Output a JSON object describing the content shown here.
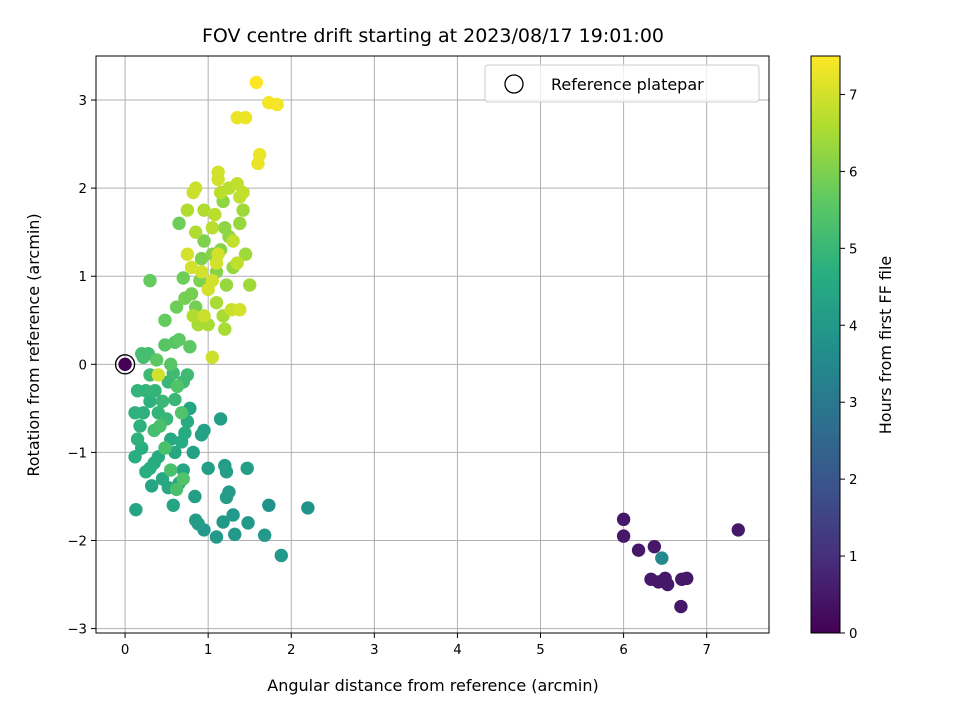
{
  "chart_data": {
    "type": "scatter",
    "title": "FOV centre drift starting at 2023/08/17 19:01:00",
    "xlabel": "Angular distance from reference (arcmin)",
    "ylabel": "Rotation from reference (arcmin)",
    "xlim": [
      -0.35,
      7.75
    ],
    "ylim": [
      -3.05,
      3.5
    ],
    "xticks": [
      0,
      1,
      2,
      3,
      4,
      5,
      6,
      7
    ],
    "yticks": [
      -3,
      -2,
      -1,
      0,
      1,
      2,
      3
    ],
    "grid": true,
    "legend": {
      "placement": "top-right",
      "entries": [
        "Reference platepar"
      ]
    },
    "reference_point": {
      "x": 0,
      "y": 0,
      "name": "Reference platepar"
    },
    "colorbar": {
      "label": "Hours from first FF file",
      "range": [
        0,
        7.5
      ],
      "ticks": [
        0,
        1,
        2,
        3,
        4,
        5,
        6,
        7
      ],
      "colormap": "viridis"
    },
    "points": [
      {
        "x": 0.0,
        "y": 0.0,
        "c": 0.0
      },
      {
        "x": 6.0,
        "y": -1.76,
        "c": 0.5
      },
      {
        "x": 6.0,
        "y": -1.95,
        "c": 0.5
      },
      {
        "x": 6.18,
        "y": -2.11,
        "c": 0.5
      },
      {
        "x": 6.37,
        "y": -2.07,
        "c": 0.5
      },
      {
        "x": 6.33,
        "y": -2.44,
        "c": 0.5
      },
      {
        "x": 6.42,
        "y": -2.47,
        "c": 0.5
      },
      {
        "x": 6.5,
        "y": -2.43,
        "c": 0.5
      },
      {
        "x": 6.53,
        "y": -2.5,
        "c": 0.5
      },
      {
        "x": 6.7,
        "y": -2.44,
        "c": 0.5
      },
      {
        "x": 6.76,
        "y": -2.43,
        "c": 0.5
      },
      {
        "x": 6.69,
        "y": -2.75,
        "c": 0.5
      },
      {
        "x": 7.38,
        "y": -1.88,
        "c": 0.5
      },
      {
        "x": 6.46,
        "y": -2.2,
        "c": 3.5
      },
      {
        "x": 2.2,
        "y": -1.63,
        "c": 3.8
      },
      {
        "x": 1.73,
        "y": -1.6,
        "c": 3.8
      },
      {
        "x": 1.88,
        "y": -2.17,
        "c": 4.0
      },
      {
        "x": 1.68,
        "y": -1.94,
        "c": 4.0
      },
      {
        "x": 1.48,
        "y": -1.8,
        "c": 4.0
      },
      {
        "x": 1.32,
        "y": -1.93,
        "c": 4.0
      },
      {
        "x": 1.3,
        "y": -1.71,
        "c": 4.0
      },
      {
        "x": 1.18,
        "y": -1.79,
        "c": 4.0
      },
      {
        "x": 1.1,
        "y": -1.96,
        "c": 4.0
      },
      {
        "x": 0.95,
        "y": -1.88,
        "c": 4.0
      },
      {
        "x": 0.88,
        "y": -1.81,
        "c": 4.1
      },
      {
        "x": 0.85,
        "y": -1.77,
        "c": 4.1
      },
      {
        "x": 1.22,
        "y": -1.51,
        "c": 4.1
      },
      {
        "x": 1.25,
        "y": -1.45,
        "c": 4.1
      },
      {
        "x": 1.2,
        "y": -1.15,
        "c": 4.1
      },
      {
        "x": 1.22,
        "y": -1.22,
        "c": 4.2
      },
      {
        "x": 1.47,
        "y": -1.18,
        "c": 4.2
      },
      {
        "x": 1.0,
        "y": -1.18,
        "c": 4.2
      },
      {
        "x": 1.15,
        "y": -0.62,
        "c": 4.2
      },
      {
        "x": 0.84,
        "y": -1.5,
        "c": 4.2
      },
      {
        "x": 0.82,
        "y": -1.0,
        "c": 4.3
      },
      {
        "x": 0.95,
        "y": -0.75,
        "c": 4.3
      },
      {
        "x": 0.92,
        "y": -0.8,
        "c": 4.3
      },
      {
        "x": 0.78,
        "y": -0.5,
        "c": 4.4
      },
      {
        "x": 0.7,
        "y": -1.2,
        "c": 4.4
      },
      {
        "x": 0.65,
        "y": -1.35,
        "c": 4.4
      },
      {
        "x": 0.58,
        "y": -1.6,
        "c": 4.4
      },
      {
        "x": 0.13,
        "y": -1.65,
        "c": 4.4
      },
      {
        "x": 0.32,
        "y": -1.38,
        "c": 4.4
      },
      {
        "x": 0.45,
        "y": -1.3,
        "c": 4.5
      },
      {
        "x": 0.52,
        "y": -1.4,
        "c": 4.5
      },
      {
        "x": 0.6,
        "y": -1.0,
        "c": 4.5
      },
      {
        "x": 0.55,
        "y": -0.85,
        "c": 4.5
      },
      {
        "x": 0.68,
        "y": -0.88,
        "c": 4.6
      },
      {
        "x": 0.72,
        "y": -0.78,
        "c": 4.6
      },
      {
        "x": 0.75,
        "y": -0.65,
        "c": 4.6
      },
      {
        "x": 0.4,
        "y": -1.05,
        "c": 4.6
      },
      {
        "x": 0.35,
        "y": -1.12,
        "c": 4.6
      },
      {
        "x": 0.3,
        "y": -1.18,
        "c": 4.7
      },
      {
        "x": 0.25,
        "y": -1.22,
        "c": 4.7
      },
      {
        "x": 0.2,
        "y": -0.95,
        "c": 4.7
      },
      {
        "x": 0.12,
        "y": -1.05,
        "c": 4.7
      },
      {
        "x": 0.15,
        "y": -0.85,
        "c": 4.8
      },
      {
        "x": 0.18,
        "y": -0.7,
        "c": 4.8
      },
      {
        "x": 0.12,
        "y": -0.55,
        "c": 4.8
      },
      {
        "x": 0.22,
        "y": -0.55,
        "c": 4.8
      },
      {
        "x": 0.3,
        "y": -0.42,
        "c": 4.8
      },
      {
        "x": 0.36,
        "y": -0.3,
        "c": 4.9
      },
      {
        "x": 0.15,
        "y": -0.3,
        "c": 4.9
      },
      {
        "x": 0.25,
        "y": -0.3,
        "c": 4.9
      },
      {
        "x": 0.4,
        "y": -0.55,
        "c": 4.9
      },
      {
        "x": 0.45,
        "y": -0.42,
        "c": 5.0
      },
      {
        "x": 0.5,
        "y": -0.62,
        "c": 5.0
      },
      {
        "x": 0.6,
        "y": -0.4,
        "c": 5.0
      },
      {
        "x": 0.52,
        "y": -0.2,
        "c": 5.0
      },
      {
        "x": 0.58,
        "y": -0.1,
        "c": 5.1
      },
      {
        "x": 0.7,
        "y": -0.2,
        "c": 5.1
      },
      {
        "x": 0.75,
        "y": -0.12,
        "c": 5.1
      },
      {
        "x": 0.3,
        "y": -0.12,
        "c": 5.1
      },
      {
        "x": 0.22,
        "y": 0.08,
        "c": 5.2
      },
      {
        "x": 0.28,
        "y": 0.12,
        "c": 5.2
      },
      {
        "x": 0.2,
        "y": 0.12,
        "c": 5.2
      },
      {
        "x": 0.35,
        "y": -0.75,
        "c": 5.2
      },
      {
        "x": 0.48,
        "y": -0.95,
        "c": 5.3
      },
      {
        "x": 0.42,
        "y": -0.7,
        "c": 5.3
      },
      {
        "x": 0.55,
        "y": -1.2,
        "c": 5.3
      },
      {
        "x": 0.62,
        "y": -1.42,
        "c": 5.3
      },
      {
        "x": 0.7,
        "y": -1.3,
        "c": 5.4
      },
      {
        "x": 0.68,
        "y": -0.55,
        "c": 5.4
      },
      {
        "x": 0.63,
        "y": -0.25,
        "c": 5.4
      },
      {
        "x": 0.55,
        "y": 0.0,
        "c": 5.5
      },
      {
        "x": 0.48,
        "y": 0.22,
        "c": 5.5
      },
      {
        "x": 0.6,
        "y": 0.25,
        "c": 5.5
      },
      {
        "x": 0.65,
        "y": 0.28,
        "c": 5.6
      },
      {
        "x": 0.78,
        "y": 0.2,
        "c": 5.6
      },
      {
        "x": 0.38,
        "y": 0.05,
        "c": 5.6
      },
      {
        "x": 0.3,
        "y": 0.95,
        "c": 5.7
      },
      {
        "x": 0.48,
        "y": 0.5,
        "c": 5.7
      },
      {
        "x": 0.65,
        "y": 1.6,
        "c": 5.8
      },
      {
        "x": 0.62,
        "y": 0.65,
        "c": 5.8
      },
      {
        "x": 0.7,
        "y": 0.98,
        "c": 5.8
      },
      {
        "x": 0.72,
        "y": 0.75,
        "c": 5.9
      },
      {
        "x": 0.8,
        "y": 0.8,
        "c": 5.9
      },
      {
        "x": 0.85,
        "y": 0.65,
        "c": 5.9
      },
      {
        "x": 0.9,
        "y": 0.95,
        "c": 6.0
      },
      {
        "x": 0.92,
        "y": 1.2,
        "c": 6.0
      },
      {
        "x": 0.95,
        "y": 1.4,
        "c": 6.0
      },
      {
        "x": 1.05,
        "y": 1.25,
        "c": 6.1
      },
      {
        "x": 1.1,
        "y": 1.05,
        "c": 6.1
      },
      {
        "x": 1.15,
        "y": 1.3,
        "c": 6.1
      },
      {
        "x": 1.2,
        "y": 1.55,
        "c": 6.2
      },
      {
        "x": 1.25,
        "y": 1.45,
        "c": 6.2
      },
      {
        "x": 1.18,
        "y": 1.85,
        "c": 6.2
      },
      {
        "x": 1.22,
        "y": 0.9,
        "c": 6.3
      },
      {
        "x": 1.3,
        "y": 1.1,
        "c": 6.3
      },
      {
        "x": 1.38,
        "y": 1.6,
        "c": 6.3
      },
      {
        "x": 1.42,
        "y": 1.75,
        "c": 6.4
      },
      {
        "x": 1.45,
        "y": 1.25,
        "c": 6.4
      },
      {
        "x": 1.5,
        "y": 0.9,
        "c": 6.4
      },
      {
        "x": 1.2,
        "y": 0.4,
        "c": 6.5
      },
      {
        "x": 1.18,
        "y": 0.55,
        "c": 6.5
      },
      {
        "x": 1.1,
        "y": 0.7,
        "c": 6.5
      },
      {
        "x": 1.0,
        "y": 0.45,
        "c": 6.5
      },
      {
        "x": 0.88,
        "y": 0.45,
        "c": 6.5
      },
      {
        "x": 0.82,
        "y": 0.55,
        "c": 6.6
      },
      {
        "x": 0.75,
        "y": 1.75,
        "c": 6.6
      },
      {
        "x": 0.85,
        "y": 1.5,
        "c": 6.6
      },
      {
        "x": 0.95,
        "y": 1.75,
        "c": 6.6
      },
      {
        "x": 1.05,
        "y": 1.55,
        "c": 6.7
      },
      {
        "x": 1.08,
        "y": 1.7,
        "c": 6.7
      },
      {
        "x": 1.15,
        "y": 1.95,
        "c": 6.7
      },
      {
        "x": 1.25,
        "y": 2.0,
        "c": 6.7
      },
      {
        "x": 1.35,
        "y": 2.05,
        "c": 6.8
      },
      {
        "x": 1.38,
        "y": 1.9,
        "c": 6.8
      },
      {
        "x": 1.42,
        "y": 1.95,
        "c": 6.8
      },
      {
        "x": 1.3,
        "y": 1.4,
        "c": 6.8
      },
      {
        "x": 1.35,
        "y": 1.15,
        "c": 6.8
      },
      {
        "x": 1.28,
        "y": 0.62,
        "c": 6.9
      },
      {
        "x": 1.05,
        "y": 0.08,
        "c": 6.9
      },
      {
        "x": 0.95,
        "y": 0.55,
        "c": 6.9
      },
      {
        "x": 0.82,
        "y": 1.95,
        "c": 6.9
      },
      {
        "x": 0.85,
        "y": 2.0,
        "c": 6.9
      },
      {
        "x": 0.75,
        "y": 1.25,
        "c": 7.0
      },
      {
        "x": 0.8,
        "y": 1.1,
        "c": 7.0
      },
      {
        "x": 0.92,
        "y": 1.05,
        "c": 7.0
      },
      {
        "x": 1.0,
        "y": 0.85,
        "c": 7.0
      },
      {
        "x": 1.05,
        "y": 0.95,
        "c": 7.0
      },
      {
        "x": 1.12,
        "y": 1.25,
        "c": 7.0
      },
      {
        "x": 1.1,
        "y": 1.15,
        "c": 7.0
      },
      {
        "x": 1.12,
        "y": 2.1,
        "c": 7.0
      },
      {
        "x": 1.12,
        "y": 2.18,
        "c": 7.0
      },
      {
        "x": 1.38,
        "y": 0.62,
        "c": 7.0
      },
      {
        "x": 0.4,
        "y": -0.12,
        "c": 7.0
      },
      {
        "x": 1.35,
        "y": 2.8,
        "c": 7.3
      },
      {
        "x": 1.45,
        "y": 2.8,
        "c": 7.3
      },
      {
        "x": 1.62,
        "y": 2.38,
        "c": 7.3
      },
      {
        "x": 1.6,
        "y": 2.28,
        "c": 7.3
      },
      {
        "x": 1.73,
        "y": 2.97,
        "c": 7.4
      },
      {
        "x": 1.83,
        "y": 2.95,
        "c": 7.4
      },
      {
        "x": 1.58,
        "y": 3.2,
        "c": 7.5
      }
    ]
  }
}
